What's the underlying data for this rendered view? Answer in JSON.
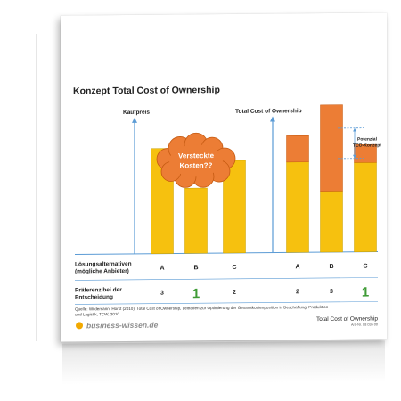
{
  "title": "Konzept Total Cost of Ownership",
  "left_chart": {
    "axis_label": "Kaufpreis",
    "cloud_text": [
      "Versteckte",
      "Kosten??"
    ],
    "bars": [
      {
        "category": "A",
        "value": 100
      },
      {
        "category": "B",
        "value": 62
      },
      {
        "category": "C",
        "value": 88
      }
    ]
  },
  "right_chart": {
    "axis_label": "Total Cost of Ownership",
    "bars": [
      {
        "category": "A",
        "base": 86,
        "hidden": 25
      },
      {
        "category": "B",
        "base": 58,
        "hidden": 82
      },
      {
        "category": "C",
        "base": 85,
        "hidden": 17
      }
    ],
    "annotation": [
      "Potenzial",
      "TCO-Konzept"
    ]
  },
  "rows": {
    "alternatives_label": [
      "Lösungsalternativen",
      "(mögliche Anbieter)"
    ],
    "preference_label": [
      "Präferenz bei der",
      "Entscheidung"
    ],
    "left_preferences": [
      "3",
      "1",
      "2"
    ],
    "right_preferences": [
      "2",
      "3",
      "1"
    ]
  },
  "source": [
    "Quelle: Wildemann, Horst (2010): Total Cost of Ownership, Leitfaden zur Optimierung der Gesamtkostenposition in Beschaffung, Produktion",
    "und Logistik, TCW, 2010."
  ],
  "footer": {
    "brand": "business-wissen.de",
    "doc_title": "Total Cost of Ownership",
    "doc_number": "Art.-Nr. 88 036 00"
  },
  "colors": {
    "yellow": "#f6c10f",
    "orange": "#ec7d35",
    "axis": "#5b9bd5",
    "highlight_green": "#3f9b36",
    "brand_dot": "#f2a900",
    "brand_text": "#8c8c8c"
  },
  "chart_data": [
    {
      "type": "bar",
      "categories": [
        "A",
        "B",
        "C"
      ],
      "series": [
        {
          "values": [
            100,
            62,
            88
          ]
        }
      ],
      "ylabel": "Kaufpreis"
    },
    {
      "type": "bar",
      "categories": [
        "A",
        "B",
        "C"
      ],
      "series": [
        {
          "values": [
            86,
            58,
            85
          ]
        },
        {
          "values": [
            25,
            82,
            17
          ]
        }
      ],
      "ylabel": "Total Cost of Ownership"
    }
  ]
}
